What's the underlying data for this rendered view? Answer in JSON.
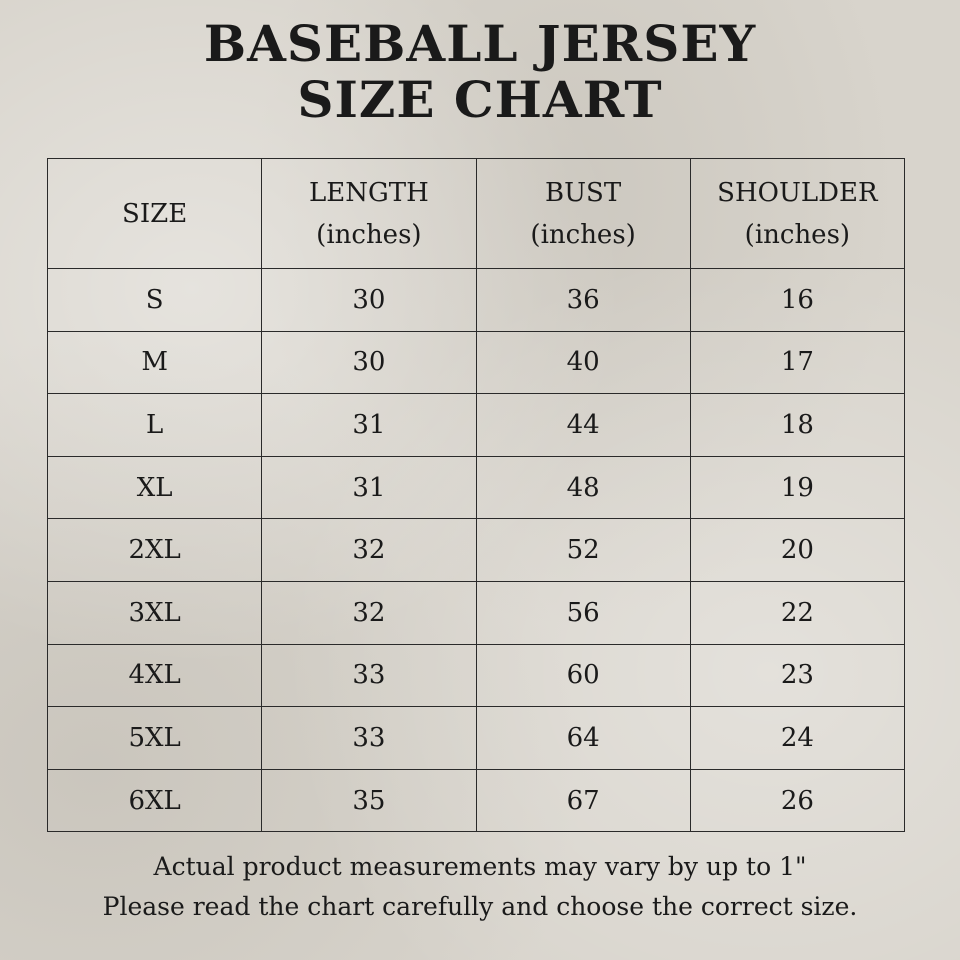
{
  "title": {
    "line1": "BASEBALL JERSEY",
    "line2": "SIZE CHART"
  },
  "table": {
    "headers": [
      {
        "name": "SIZE",
        "unit": ""
      },
      {
        "name": "LENGTH",
        "unit": "(inches)"
      },
      {
        "name": "BUST",
        "unit": "(inches)"
      },
      {
        "name": "SHOULDER",
        "unit": "(inches)"
      }
    ],
    "rows": [
      [
        "S",
        "30",
        "36",
        "16"
      ],
      [
        "M",
        "30",
        "40",
        "17"
      ],
      [
        "L",
        "31",
        "44",
        "18"
      ],
      [
        "XL",
        "31",
        "48",
        "19"
      ],
      [
        "2XL",
        "32",
        "52",
        "20"
      ],
      [
        "3XL",
        "32",
        "56",
        "22"
      ],
      [
        "4XL",
        "33",
        "60",
        "23"
      ],
      [
        "5XL",
        "33",
        "64",
        "24"
      ],
      [
        "6XL",
        "35",
        "67",
        "26"
      ]
    ]
  },
  "footer": {
    "line1": "Actual product measurements may vary by up to 1\"",
    "line2": "Please read the chart carefully and choose the correct size."
  }
}
